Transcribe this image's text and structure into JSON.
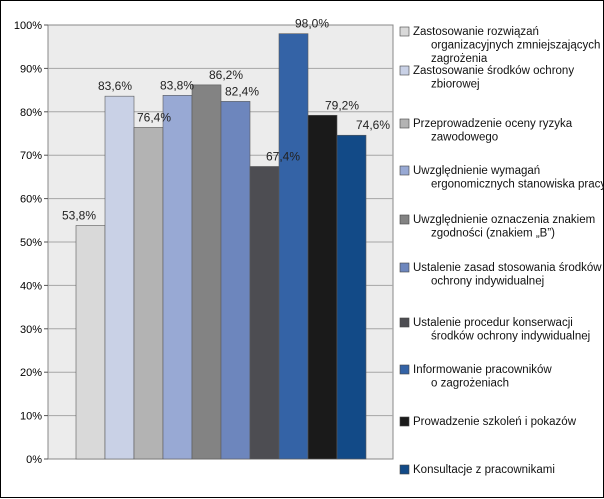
{
  "chart_data": {
    "type": "bar",
    "title": "",
    "xlabel": "",
    "ylabel": "",
    "ylim": [
      0,
      100
    ],
    "yticks": [
      "0%",
      "10%",
      "20%",
      "30%",
      "40%",
      "50%",
      "60%",
      "70%",
      "80%",
      "90%",
      "100%"
    ],
    "grid": true,
    "legend_position": "right",
    "plot_background": "#ececec",
    "data_labels": [
      "53,8%",
      "83,6%",
      "76,4%",
      "83,8%",
      "86,2%",
      "82,4%",
      "67,4%",
      "98,0%",
      "79,2%",
      "74,6%"
    ],
    "series": [
      {
        "name": "Zastosowanie rozwiązań organizacyjnych zmniejszających zagrożenia",
        "legend_lines": [
          "Zastosowanie rozwiązań",
          "organizacyjnych  zmniejszających",
          "zagrożenia"
        ],
        "values": [
          53.8
        ],
        "color": "#d9d9d9"
      },
      {
        "name": "Zastosowanie środków ochrony zbiorowej",
        "legend_lines": [
          "Zastosowanie środków ochrony",
          "zbiorowej"
        ],
        "values": [
          83.6
        ],
        "color": "#c9d1e6"
      },
      {
        "name": "Przeprowadzenie oceny ryzyka zawodowego",
        "legend_lines": [
          "Przeprowadzenie oceny ryzyka",
          "zawodowego"
        ],
        "values": [
          76.4
        ],
        "color": "#b3b3b3"
      },
      {
        "name": "Uwzględnienie wymagań ergonomicznych stanowiska pracy",
        "legend_lines": [
          "Uwzględnienie wymagań",
          "ergonomicznych stanowiska pracy"
        ],
        "values": [
          83.8
        ],
        "color": "#98a9d4"
      },
      {
        "name": "Uwzględnienie oznaczenia znakiem zgodności (znakiem „B”)",
        "legend_lines": [
          "Uwzględnienie oznaczenia znakiem",
          "zgodności (znakiem „B”)"
        ],
        "values": [
          86.2
        ],
        "color": "#838383"
      },
      {
        "name": "Ustalenie zasad stosowania środków ochrony indywidualnej",
        "legend_lines": [
          "Ustalenie zasad stosowania środków",
          "ochrony indywidualnej"
        ],
        "values": [
          82.4
        ],
        "color": "#6d86bd"
      },
      {
        "name": "Ustalenie procedur konserwacji środków ochrony indywidualnej",
        "legend_lines": [
          "Ustalenie procedur konserwacji",
          "środków ochrony indywidualnej"
        ],
        "values": [
          67.4
        ],
        "color": "#4d4d52"
      },
      {
        "name": "Informowanie pracowników o zagrożeniach",
        "legend_lines": [
          "Informowanie pracowników",
          "o zagrożeniach"
        ],
        "values": [
          98.0
        ],
        "color": "#3463a6"
      },
      {
        "name": "Prowadzenie szkoleń i pokazów",
        "legend_lines": [
          "Prowadzenie szkoleń i pokazów"
        ],
        "values": [
          79.2
        ],
        "color": "#1a1a1a"
      },
      {
        "name": "Konsultacje z pracownikami",
        "legend_lines": [
          "Konsultacje z pracownikami"
        ],
        "values": [
          74.6
        ],
        "color": "#124a87"
      }
    ]
  }
}
